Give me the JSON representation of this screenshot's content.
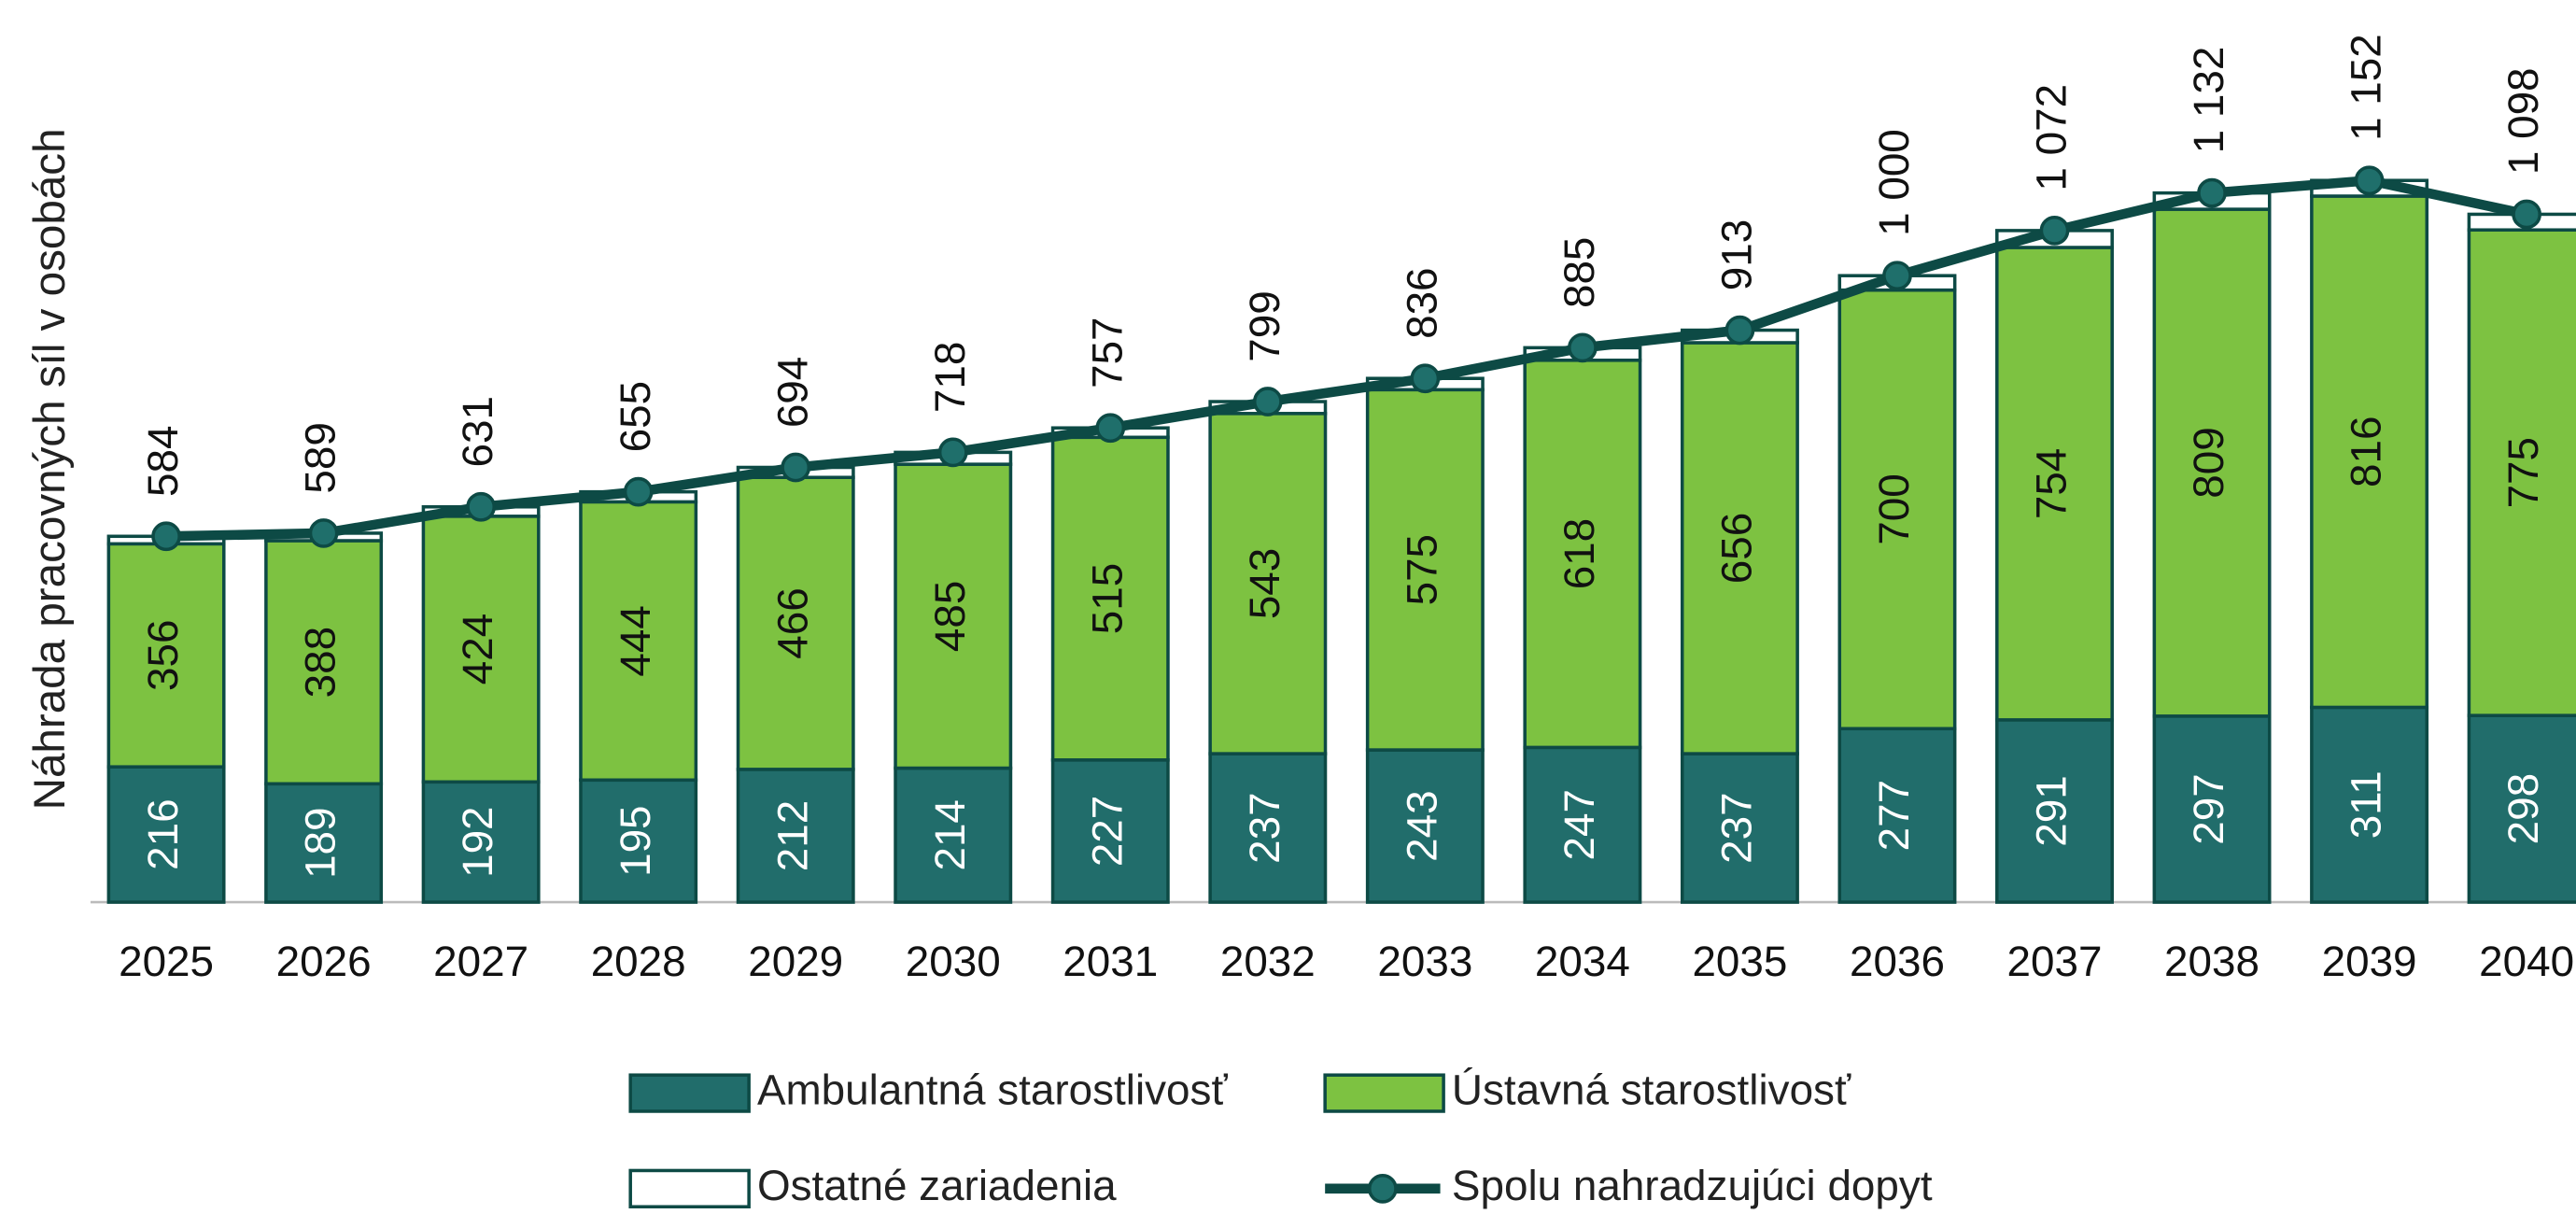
{
  "chart_data": {
    "type": "bar",
    "stacked": true,
    "y_label": "Náhrada pracovných síl v osobách",
    "categories": [
      "2025",
      "2026",
      "2027",
      "2028",
      "2029",
      "2030",
      "2031",
      "2032",
      "2033",
      "2034",
      "2035",
      "2036",
      "2037",
      "2038",
      "2039",
      "2040"
    ],
    "ylim": [
      0,
      1440
    ],
    "grid": false,
    "legend": "bottom",
    "series": [
      {
        "name": "Ambulantná starostlivosť",
        "color": "#216d6b",
        "label_color": "#ffffff",
        "values": [
          216,
          189,
          192,
          195,
          212,
          214,
          227,
          237,
          243,
          247,
          237,
          277,
          291,
          297,
          311,
          298
        ]
      },
      {
        "name": "Ústavná starostlivosť",
        "color": "#7dc241",
        "label_color": "#111111",
        "values": [
          356,
          388,
          424,
          444,
          466,
          485,
          515,
          543,
          575,
          618,
          656,
          700,
          754,
          809,
          816,
          775
        ]
      },
      {
        "name": "Ostatné zariadenia",
        "color": "#ffffff",
        "values": [
          12,
          12,
          15,
          16,
          16,
          19,
          15,
          19,
          18,
          20,
          20,
          23,
          27,
          26,
          25,
          25
        ]
      },
      {
        "name": "Spolu nahradzujúci dopyt",
        "type": "line",
        "color": "#0d4a45",
        "values": [
          584,
          589,
          631,
          655,
          694,
          718,
          757,
          799,
          836,
          885,
          913,
          1000,
          1072,
          1132,
          1152,
          1098
        ],
        "value_labels": [
          "584",
          "589",
          "631",
          "655",
          "694",
          "718",
          "757",
          "799",
          "836",
          "885",
          "913",
          "1 000",
          "1 072",
          "1 132",
          "1 152",
          "1 098"
        ]
      }
    ]
  }
}
